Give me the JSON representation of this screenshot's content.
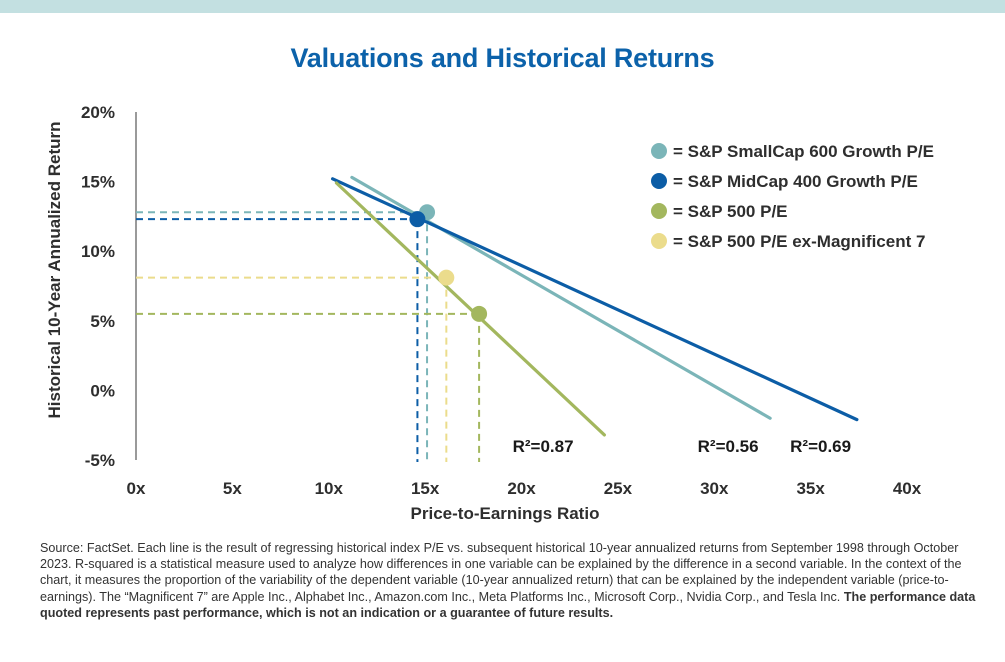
{
  "colors": {
    "title": "#0c62aa",
    "topbar": "#c3e0e1",
    "smallcap": "#7bb5b8",
    "midcap": "#0c5da6",
    "sp500": "#a3b75e",
    "exmag7": "#ebdc8c"
  },
  "chart_data": {
    "type": "scatter",
    "title": "Valuations and Historical Returns",
    "xlabel": "Price-to-Earnings Ratio",
    "ylabel": "Historical 10-Year Annualized Return",
    "xlim": [
      0,
      40
    ],
    "ylim": [
      -5,
      20
    ],
    "xticks": [
      0,
      5,
      10,
      15,
      20,
      25,
      30,
      35,
      40
    ],
    "xtick_labels": [
      "0x",
      "5x",
      "10x",
      "15x",
      "20x",
      "25x",
      "30x",
      "35x",
      "40x"
    ],
    "yticks": [
      20,
      15,
      10,
      5,
      0,
      -5
    ],
    "ytick_labels": [
      "20%",
      "15%",
      "10%",
      "5%",
      "0%",
      "-5%"
    ],
    "regression_lines": [
      {
        "name": "smallcap",
        "x": [
          11.2,
          32.9
        ],
        "y": [
          15.3,
          -2.0
        ],
        "r2_label": "R²=0.56",
        "r2_at": [
          32.3,
          -4.0
        ]
      },
      {
        "name": "midcap",
        "x": [
          10.2,
          37.4
        ],
        "y": [
          15.2,
          -2.1
        ],
        "r2_label": "R²=0.69",
        "r2_at": [
          37.1,
          -4.0
        ]
      },
      {
        "name": "sp500",
        "x": [
          10.4,
          24.3
        ],
        "y": [
          14.9,
          -3.2
        ],
        "r2_label": "R²=0.87",
        "r2_at": [
          22.7,
          -4.0
        ]
      }
    ],
    "points": [
      {
        "name": "S&P SmallCap 600 Growth P/E",
        "key": "smallcap",
        "x": 15.1,
        "y": 12.8
      },
      {
        "name": "S&P MidCap 400 Growth P/E",
        "key": "midcap",
        "x": 14.6,
        "y": 12.3
      },
      {
        "name": "S&P 500 P/E",
        "key": "sp500",
        "x": 17.8,
        "y": 5.5
      },
      {
        "name": "S&P 500 P/E ex-Magnificent 7",
        "key": "exmag7",
        "x": 16.1,
        "y": 8.1
      }
    ],
    "legend": {
      "placement": "top-right",
      "items": [
        {
          "key": "smallcap",
          "label": "= S&P SmallCap 600 Growth P/E"
        },
        {
          "key": "midcap",
          "label": "= S&P MidCap 400 Growth P/E"
        },
        {
          "key": "sp500",
          "label": "= S&P 500 P/E"
        },
        {
          "key": "exmag7",
          "label": "= S&P 500 P/E ex-Magnificent 7"
        }
      ]
    }
  },
  "footnote": {
    "text": "Source: FactSet. Each line is the result of regressing historical index P/E vs. subsequent historical 10-year annualized returns from September 1998 through October 2023. R-squared is a statistical measure used to analyze how differences in one variable can be explained by the difference in a second variable. In the context of the chart, it measures the proportion of the variability of the dependent variable (10-year annualized return) that can be explained by the independent variable (price-to-earnings). The “Magnificent 7” are Apple Inc., Alphabet Inc., Amazon.com Inc., Meta Platforms Inc., Microsoft Corp., Nvidia Corp., and Tesla Inc. ",
    "bold": "The performance data quoted represents past performance, which is not an indication or a guarantee of future results."
  }
}
